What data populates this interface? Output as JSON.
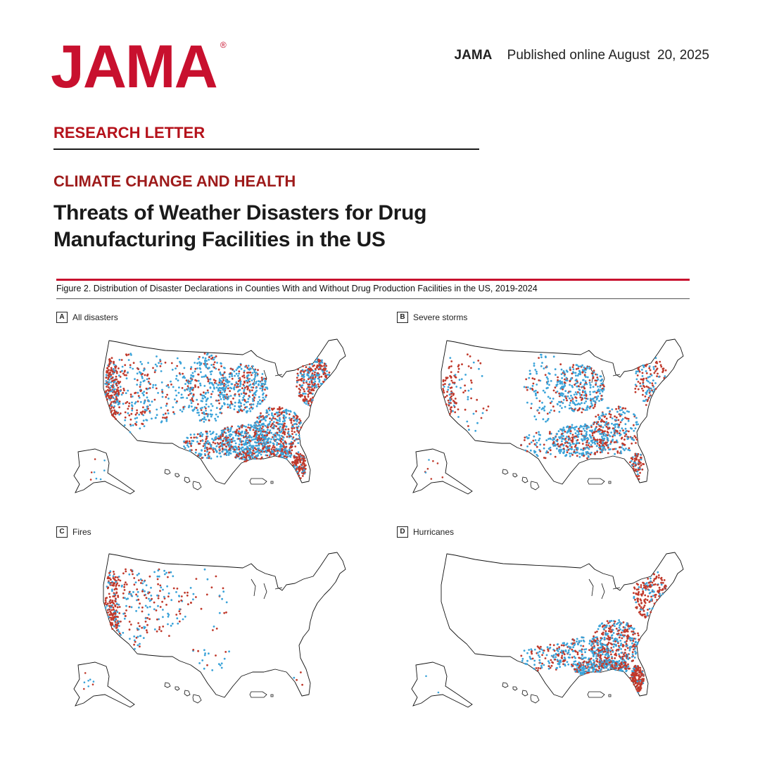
{
  "header": {
    "logo": "JAMA",
    "logo_mark": "®",
    "journal": "JAMA",
    "published": "Published online August  20, 2025"
  },
  "article": {
    "section": "RESEARCH LETTER",
    "kicker": "CLIMATE CHANGE AND HEALTH",
    "title_line1": "Threats of Weather Disasters for Drug",
    "title_line2": "Manufacturing Facilities in the US"
  },
  "figure": {
    "caption": "Figure 2. Distribution of Disaster Declarations in Counties With and Without Drug Production Facilities in the US, 2019-2024",
    "panels": [
      {
        "letter": "A",
        "label": "All disasters"
      },
      {
        "letter": "B",
        "label": "Severe storms"
      },
      {
        "letter": "C",
        "label": "Fires"
      },
      {
        "letter": "D",
        "label": "Hurricanes"
      }
    ]
  },
  "colors": {
    "brand_red": "#c8102e",
    "section_red": "#b5121b",
    "kicker_red": "#9e1b1b",
    "dot_red": "#c0392b",
    "dot_blue": "#3ba3d9"
  }
}
